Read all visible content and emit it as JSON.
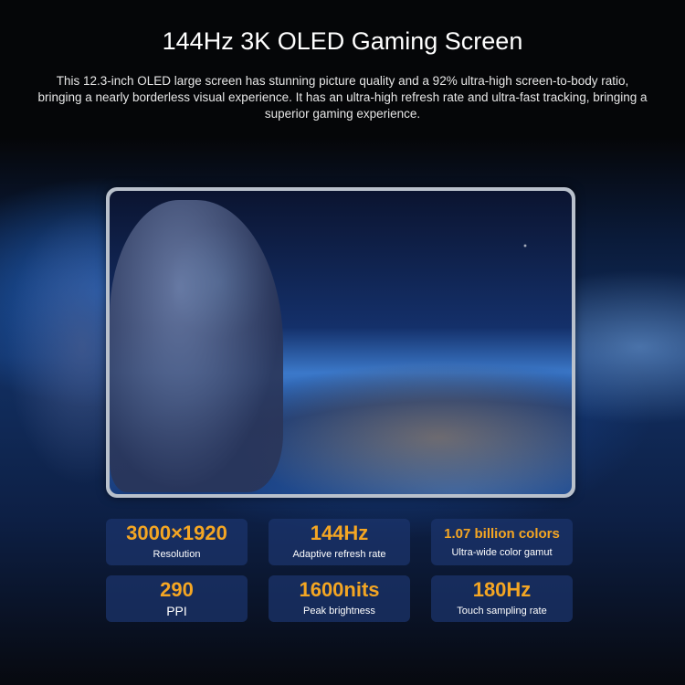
{
  "title": "144Hz 3K OLED Gaming Screen",
  "description": "This 12.3-inch OLED large screen has stunning picture quality and a 92% ultra-high screen-to-body ratio, bringing a nearly borderless visual experience. It has an ultra-high refresh rate and ultra-fast tracking, bringing a superior gaming experience.",
  "accent_color": "#f4a623",
  "stats": [
    {
      "value": "3000×1920",
      "label": "Resolution"
    },
    {
      "value": "144Hz",
      "label": "Adaptive refresh rate"
    },
    {
      "value": "1.07 billion colors",
      "label": "Ultra-wide color gamut"
    },
    {
      "value": "290",
      "label": "PPI"
    },
    {
      "value": "1600nits",
      "label": "Peak brightness"
    },
    {
      "value": "180Hz",
      "label": "Touch sampling rate"
    }
  ]
}
